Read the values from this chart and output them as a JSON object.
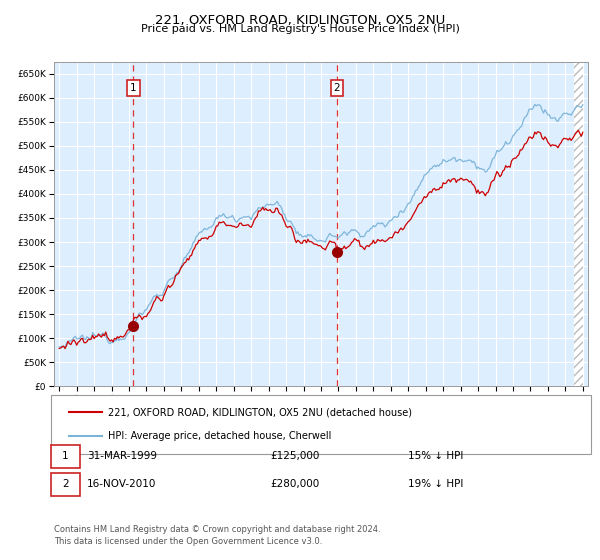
{
  "title": "221, OXFORD ROAD, KIDLINGTON, OX5 2NU",
  "subtitle": "Price paid vs. HM Land Registry's House Price Index (HPI)",
  "legend_line1": "221, OXFORD ROAD, KIDLINGTON, OX5 2NU (detached house)",
  "legend_line2": "HPI: Average price, detached house, Cherwell",
  "annotation1_date": "31-MAR-1999",
  "annotation1_price": "£125,000",
  "annotation1_pct": "15% ↓ HPI",
  "annotation2_date": "16-NOV-2010",
  "annotation2_price": "£280,000",
  "annotation2_pct": "19% ↓ HPI",
  "footer_line1": "Contains HM Land Registry data © Crown copyright and database right 2024.",
  "footer_line2": "This data is licensed under the Open Government Licence v3.0.",
  "yticks": [
    0,
    50000,
    100000,
    150000,
    200000,
    250000,
    300000,
    350000,
    400000,
    450000,
    500000,
    550000,
    600000,
    650000
  ],
  "hpi_color": "#7ab3d8",
  "price_color": "#cc0000",
  "bg_color": "#ddeeff",
  "grid_color": "#ffffff",
  "sale1_year": 1999.25,
  "sale1_value": 125000,
  "sale2_year": 2010.88,
  "sale2_value": 280000
}
